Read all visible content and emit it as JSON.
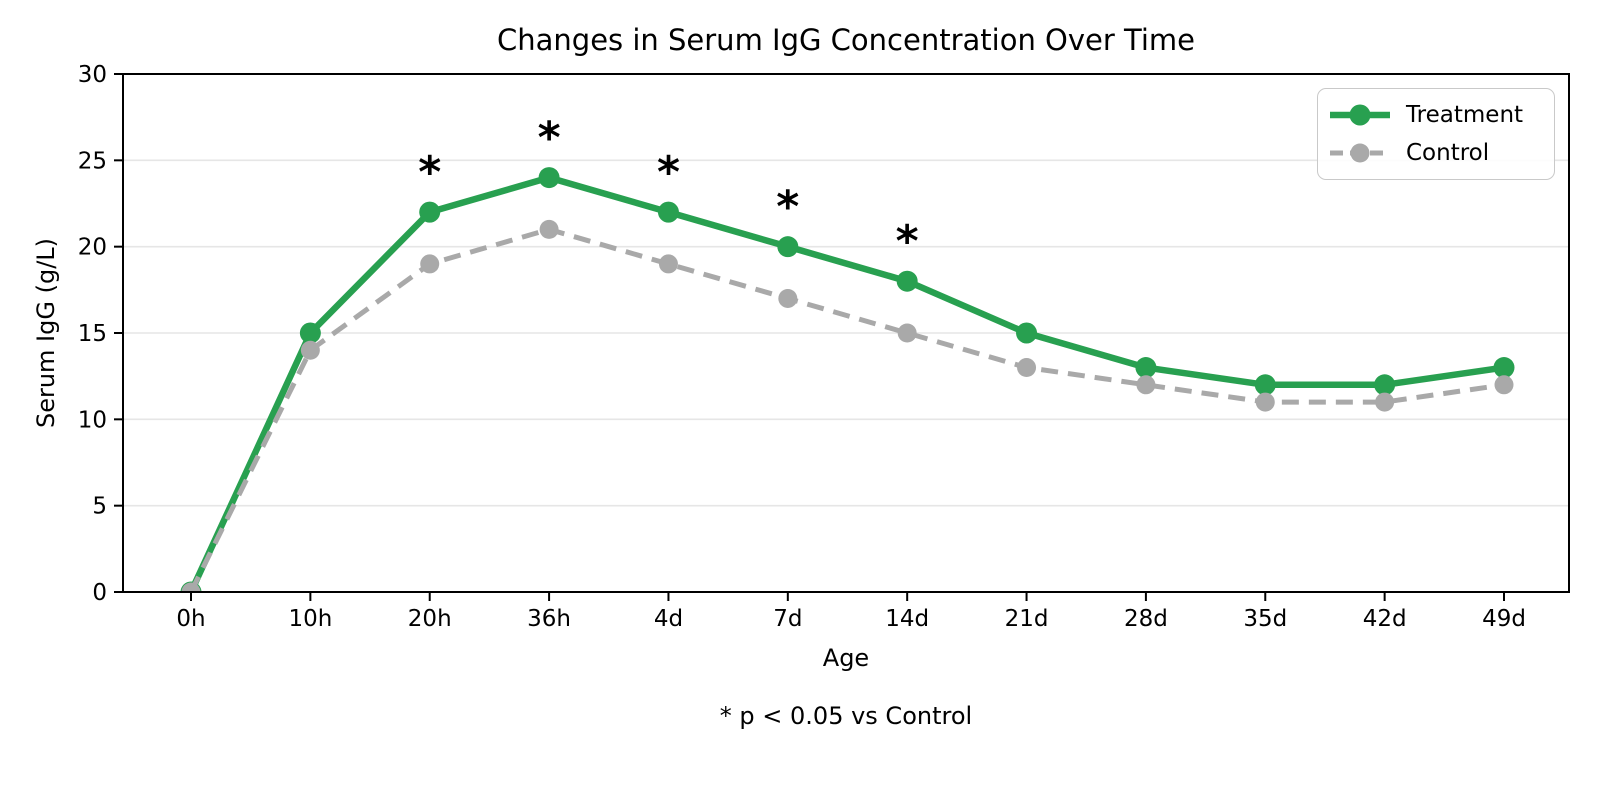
{
  "chart_data": {
    "type": "line",
    "title": "Changes in Serum IgG Concentration Over Time",
    "xlabel": "Age",
    "ylabel": "Serum IgG (g/L)",
    "footnote": "* p < 0.05 vs Control",
    "categories": [
      "0h",
      "10h",
      "20h",
      "36h",
      "4d",
      "7d",
      "14d",
      "21d",
      "28d",
      "35d",
      "42d",
      "49d"
    ],
    "ylim": [
      0,
      30
    ],
    "yticks": [
      0,
      5,
      10,
      15,
      20,
      25,
      30
    ],
    "grid": "horizontal",
    "legend_position": "upper-right",
    "series": [
      {
        "name": "Treatment",
        "color": "#28a050",
        "line_style": "solid",
        "marker": "circle",
        "values": [
          0,
          15,
          22,
          24,
          22,
          20,
          18,
          15,
          13,
          12,
          12,
          13
        ]
      },
      {
        "name": "Control",
        "color": "#a9a9a9",
        "line_style": "dashed",
        "marker": "circle",
        "values": [
          0,
          14,
          19,
          21,
          19,
          17,
          15,
          13,
          12,
          11,
          11,
          12
        ]
      }
    ],
    "annotations": {
      "symbol": "*",
      "categories": [
        "20h",
        "36h",
        "4d",
        "7d",
        "14d"
      ],
      "offset_units": 2.8
    },
    "colors": {
      "axis": "#000000",
      "grid": "#e6e6e6",
      "text": "#000000"
    }
  }
}
